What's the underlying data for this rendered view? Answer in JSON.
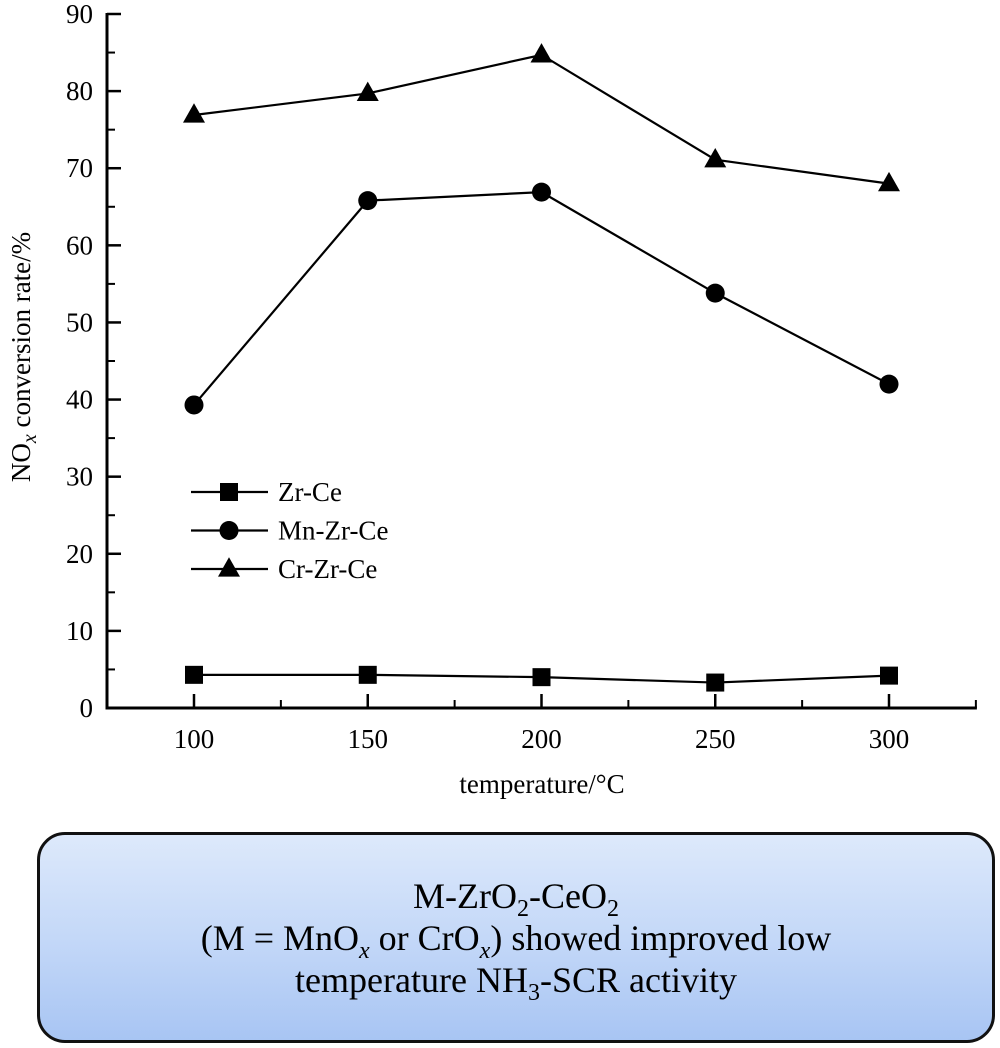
{
  "chart_data": {
    "type": "line",
    "title": "",
    "xlabel": "temperature/°C",
    "ylabel": {
      "prefix": "NO",
      "subscript": "x",
      "suffix": " conversion rate/%"
    },
    "x": [
      100,
      150,
      200,
      250,
      300
    ],
    "xlim": [
      75,
      325
    ],
    "ylim": [
      0,
      90
    ],
    "xticks": [
      100,
      150,
      200,
      250,
      300
    ],
    "xticks_minor": [
      125,
      175,
      225,
      275
    ],
    "yticks": [
      0,
      10,
      20,
      30,
      40,
      50,
      60,
      70,
      80,
      90
    ],
    "yticks_minor": [
      5,
      15,
      25,
      35,
      45,
      55,
      65,
      75,
      85
    ],
    "grid": false,
    "legend_position": "center-left",
    "series": [
      {
        "name": "Zr-Ce",
        "marker": "square",
        "values": [
          4.3,
          4.3,
          4.0,
          3.3,
          4.2
        ]
      },
      {
        "name": "Mn-Zr-Ce",
        "marker": "circle",
        "values": [
          39.3,
          65.8,
          66.9,
          53.8,
          42.0
        ]
      },
      {
        "name": "Cr-Zr-Ce",
        "marker": "triangle",
        "values": [
          76.9,
          79.7,
          84.7,
          71.1,
          68.0
        ]
      }
    ]
  },
  "summary": {
    "line1": {
      "a": "M-ZrO",
      "a_sub": "2",
      "b": "-CeO",
      "b_sub": "2"
    },
    "line2": {
      "a": "(M = MnO",
      "a_sub": "x",
      "b": " or CrO",
      "b_sub": "x",
      "c": ") showed improved low"
    },
    "line3": {
      "a": "temperature NH",
      "a_sub": "3",
      "b": "-SCR activity"
    }
  },
  "colors": {
    "line": "#000000",
    "box_top": "#dde9fb",
    "box_bottom": "#a8c5f3",
    "box_border": "#111111"
  }
}
